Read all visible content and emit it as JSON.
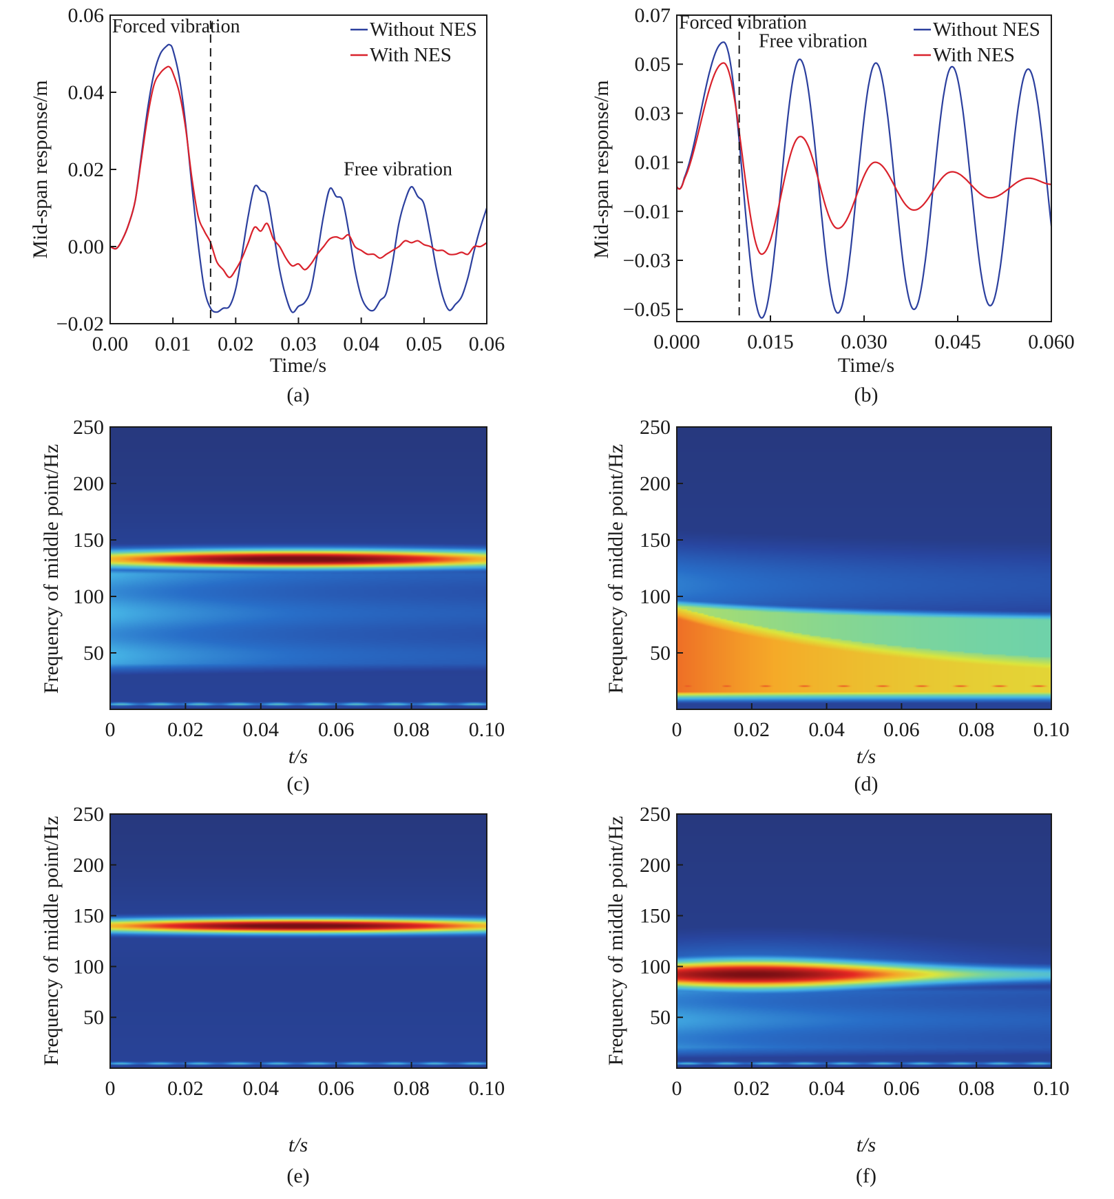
{
  "colors": {
    "without_nes": "#2b3f9e",
    "with_nes": "#d9212b",
    "axis": "#1a1a1a",
    "jet_background": "#263575"
  },
  "chart_data": [
    {
      "id": "a",
      "type": "line",
      "caption": "(a)",
      "xlabel": "Time/s",
      "ylabel": "Mid-span response/m",
      "xlim": [
        0,
        0.06
      ],
      "ylim": [
        -0.02,
        0.06
      ],
      "xticks": [
        0,
        0.01,
        0.02,
        0.03,
        0.04,
        0.05,
        0.06
      ],
      "xtick_labels": [
        "0.00",
        "0.01",
        "0.02",
        "0.03",
        "0.04",
        "0.05",
        "0.06"
      ],
      "yticks": [
        -0.02,
        0,
        0.02,
        0.04,
        0.06
      ],
      "ytick_labels": [
        "−0.02",
        "0.00",
        "0.02",
        "0.04",
        "0.06"
      ],
      "divider_x": 0.016,
      "annotations": [
        {
          "text": "Forced vibration",
          "x": 0.0003,
          "y": 0.0555
        },
        {
          "text": "Free vibration",
          "x": 0.0372,
          "y": 0.0185
        }
      ],
      "legend": {
        "placement": "top-right",
        "entries": [
          "Without NES",
          "With NES"
        ]
      },
      "series": [
        {
          "name": "Without NES",
          "x": [
            0,
            0.001,
            0.002,
            0.003,
            0.004,
            0.005,
            0.006,
            0.007,
            0.008,
            0.009,
            0.0095,
            0.01,
            0.011,
            0.012,
            0.013,
            0.014,
            0.015,
            0.016,
            0.017,
            0.018,
            0.019,
            0.02,
            0.021,
            0.022,
            0.023,
            0.024,
            0.025,
            0.026,
            0.027,
            0.028,
            0.029,
            0.03,
            0.031,
            0.032,
            0.033,
            0.034,
            0.035,
            0.036,
            0.037,
            0.038,
            0.039,
            0.04,
            0.041,
            0.042,
            0.043,
            0.044,
            0.045,
            0.046,
            0.047,
            0.048,
            0.049,
            0.05,
            0.051,
            0.052,
            0.053,
            0.054,
            0.055,
            0.056,
            0.057,
            0.058,
            0.059,
            0.06
          ],
          "y": [
            0,
            -0.0005,
            0.002,
            0.006,
            0.012,
            0.024,
            0.036,
            0.045,
            0.05,
            0.052,
            0.0523,
            0.051,
            0.044,
            0.032,
            0.016,
            0.001,
            -0.011,
            -0.016,
            -0.017,
            -0.016,
            -0.0155,
            -0.011,
            -0.002,
            0.008,
            0.0155,
            0.0145,
            0.013,
            0.004,
            -0.006,
            -0.013,
            -0.017,
            -0.0155,
            -0.0145,
            -0.011,
            -0.002,
            0.008,
            0.015,
            0.013,
            0.012,
            0.004,
            -0.006,
            -0.013,
            -0.016,
            -0.0165,
            -0.014,
            -0.012,
            -0.004,
            0.006,
            0.012,
            0.0155,
            0.013,
            0.011,
            0.003,
            -0.006,
            -0.013,
            -0.0165,
            -0.015,
            -0.013,
            -0.008,
            -0.001,
            0.005,
            0.01
          ]
        },
        {
          "name": "With NES",
          "x": [
            0,
            0.001,
            0.002,
            0.003,
            0.004,
            0.005,
            0.006,
            0.007,
            0.008,
            0.009,
            0.0095,
            0.01,
            0.011,
            0.012,
            0.013,
            0.014,
            0.015,
            0.016,
            0.017,
            0.018,
            0.019,
            0.02,
            0.021,
            0.022,
            0.023,
            0.024,
            0.025,
            0.026,
            0.027,
            0.028,
            0.029,
            0.03,
            0.031,
            0.032,
            0.033,
            0.034,
            0.035,
            0.036,
            0.037,
            0.038,
            0.039,
            0.04,
            0.041,
            0.042,
            0.043,
            0.044,
            0.045,
            0.046,
            0.047,
            0.048,
            0.049,
            0.05,
            0.051,
            0.052,
            0.053,
            0.054,
            0.055,
            0.056,
            0.057,
            0.058,
            0.059,
            0.06
          ],
          "y": [
            0,
            -0.0005,
            0.002,
            0.006,
            0.012,
            0.023,
            0.034,
            0.042,
            0.045,
            0.0465,
            0.0465,
            0.045,
            0.04,
            0.031,
            0.018,
            0.008,
            0.004,
            0.001,
            -0.004,
            -0.006,
            -0.008,
            -0.006,
            -0.003,
            0.001,
            0.005,
            0.004,
            0.006,
            0.002,
            0.0,
            -0.003,
            -0.005,
            -0.0045,
            -0.006,
            -0.0045,
            -0.002,
            0.0,
            0.002,
            0.0025,
            0.002,
            0.003,
            0.0,
            -0.001,
            -0.002,
            -0.002,
            -0.003,
            -0.002,
            -0.001,
            0.0,
            0.0015,
            0.001,
            0.0015,
            0.0005,
            0.0,
            -0.001,
            -0.001,
            -0.002,
            -0.002,
            -0.0015,
            -0.002,
            0.0,
            0.0,
            0.001
          ]
        }
      ]
    },
    {
      "id": "b",
      "type": "line",
      "caption": "(b)",
      "xlabel": "Time/s",
      "ylabel": "Mid-span response/m",
      "xlim": [
        0,
        0.06
      ],
      "ylim": [
        -0.055,
        0.07
      ],
      "xticks": [
        0,
        0.015,
        0.03,
        0.045,
        0.06
      ],
      "xtick_labels": [
        "0.000",
        "0.015",
        "0.030",
        "0.045",
        "0.060"
      ],
      "yticks": [
        -0.05,
        -0.03,
        -0.01,
        0.01,
        0.03,
        0.05,
        0.07
      ],
      "ytick_labels": [
        "−0.05",
        "−0.03",
        "−0.01",
        "0.01",
        "0.03",
        "0.05",
        "0.07"
      ],
      "divider_x": 0.01,
      "annotations": [
        {
          "text": "Forced vibration",
          "x": 0.0,
          "y": 0.0645
        },
        {
          "text": "Free vibration",
          "x": 0.0128,
          "y": 0.057
        }
      ],
      "legend": {
        "placement": "top-right",
        "entries": [
          "Without NES",
          "With NES"
        ]
      },
      "series": [
        {
          "name": "Without NES",
          "period": 0.0122,
          "first_peak_t": 0.0075,
          "peaks": [
            0.059,
            0.052,
            0.0505,
            0.049,
            0.048
          ],
          "troughs": [
            -0.0535,
            -0.0515,
            -0.05,
            -0.0485
          ],
          "start": [
            0,
            0
          ],
          "end": [
            0.06,
            -0.005
          ]
        },
        {
          "name": "With NES",
          "peaks": [
            [
              0.0075,
              0.0505
            ],
            [
              0.0198,
              0.0205
            ],
            [
              0.0318,
              0.01
            ],
            [
              0.0441,
              0.0061
            ],
            [
              0.0564,
              0.0035
            ]
          ],
          "troughs": [
            [
              0.0136,
              -0.0275
            ],
            [
              0.0258,
              -0.017
            ],
            [
              0.038,
              -0.0095
            ],
            [
              0.0502,
              -0.0045
            ]
          ],
          "start": [
            0,
            0
          ],
          "end": [
            0.06,
            0.001
          ]
        }
      ]
    },
    {
      "id": "c",
      "type": "heatmap",
      "caption": "(c)",
      "xlabel": "t/s",
      "ylabel": "Frequency of middle point/Hz",
      "xlim": [
        0,
        0.1
      ],
      "ylim": [
        0,
        250
      ],
      "xticks": [
        0,
        0.02,
        0.04,
        0.06,
        0.08,
        0.1
      ],
      "xtick_labels": [
        "0",
        "0.02",
        "0.04",
        "0.06",
        "0.08",
        "0.10"
      ],
      "yticks": [
        50,
        100,
        150,
        200,
        250
      ],
      "ytick_labels": [
        "50",
        "100",
        "150",
        "200",
        "250"
      ],
      "colormap": "jet",
      "features": [
        {
          "kind": "band",
          "freq": 133,
          "width": 9,
          "t_center": 0.05,
          "t_spread": 0.075,
          "intensity": 1.0
        },
        {
          "kind": "diffuse",
          "freq_range": [
            40,
            125
          ],
          "t_fade": 0.05,
          "intensity": 0.38
        },
        {
          "kind": "line",
          "freq": 4,
          "intensity": 0.45
        }
      ]
    },
    {
      "id": "d",
      "type": "heatmap",
      "caption": "(d)",
      "xlabel": "t/s",
      "ylabel": "Frequency of middle point/Hz",
      "xlim": [
        0,
        0.1
      ],
      "ylim": [
        0,
        250
      ],
      "xticks": [
        0,
        0.02,
        0.04,
        0.06,
        0.08,
        0.1
      ],
      "xtick_labels": [
        "0",
        "0.02",
        "0.04",
        "0.06",
        "0.08",
        "0.10"
      ],
      "yticks": [
        50,
        100,
        150,
        200,
        250
      ],
      "ytick_labels": [
        "50",
        "100",
        "150",
        "200",
        "250"
      ],
      "colormap": "jet",
      "features": [
        {
          "kind": "broad",
          "freq_range": [
            15,
            95
          ],
          "t_decay": 0.06,
          "intensity": 0.88
        },
        {
          "kind": "line",
          "freq": 20,
          "intensity": 0.8
        }
      ]
    },
    {
      "id": "e",
      "type": "heatmap",
      "caption": "(e)",
      "xlabel": "t/s",
      "ylabel": "Frequency of middle point/Hz",
      "xlim": [
        0,
        0.1
      ],
      "ylim": [
        0,
        250
      ],
      "xticks": [
        0,
        0.02,
        0.04,
        0.06,
        0.08,
        0.1
      ],
      "xtick_labels": [
        "0",
        "0.02",
        "0.04",
        "0.06",
        "0.08",
        "0.10"
      ],
      "yticks": [
        50,
        100,
        150,
        200,
        250
      ],
      "ytick_labels": [
        "50",
        "100",
        "150",
        "200",
        "250"
      ],
      "colormap": "jet",
      "features": [
        {
          "kind": "band",
          "freq": 140,
          "width": 8,
          "t_center": 0.05,
          "t_spread": 0.075,
          "intensity": 1.0
        },
        {
          "kind": "line",
          "freq": 4,
          "intensity": 0.42
        }
      ]
    },
    {
      "id": "f",
      "type": "heatmap",
      "caption": "(f)",
      "xlabel": "t/s",
      "ylabel": "Frequency of middle point/Hz",
      "xlim": [
        0,
        0.1
      ],
      "ylim": [
        0,
        250
      ],
      "xticks": [
        0,
        0.02,
        0.04,
        0.06,
        0.08,
        0.1
      ],
      "xtick_labels": [
        "0",
        "0.02",
        "0.04",
        "0.06",
        "0.08",
        "0.10"
      ],
      "yticks": [
        50,
        100,
        150,
        200,
        250
      ],
      "ytick_labels": [
        "50",
        "100",
        "150",
        "200",
        "250"
      ],
      "colormap": "jet",
      "features": [
        {
          "kind": "decaying_band",
          "freq": 92,
          "width": 12,
          "t_peak": 0.02,
          "t_decay": 0.05,
          "intensity": 1.0
        },
        {
          "kind": "diffuse",
          "freq_range": [
            20,
            80
          ],
          "t_fade": 0.07,
          "intensity": 0.35
        },
        {
          "kind": "line",
          "freq": 4,
          "intensity": 0.42
        }
      ]
    }
  ]
}
